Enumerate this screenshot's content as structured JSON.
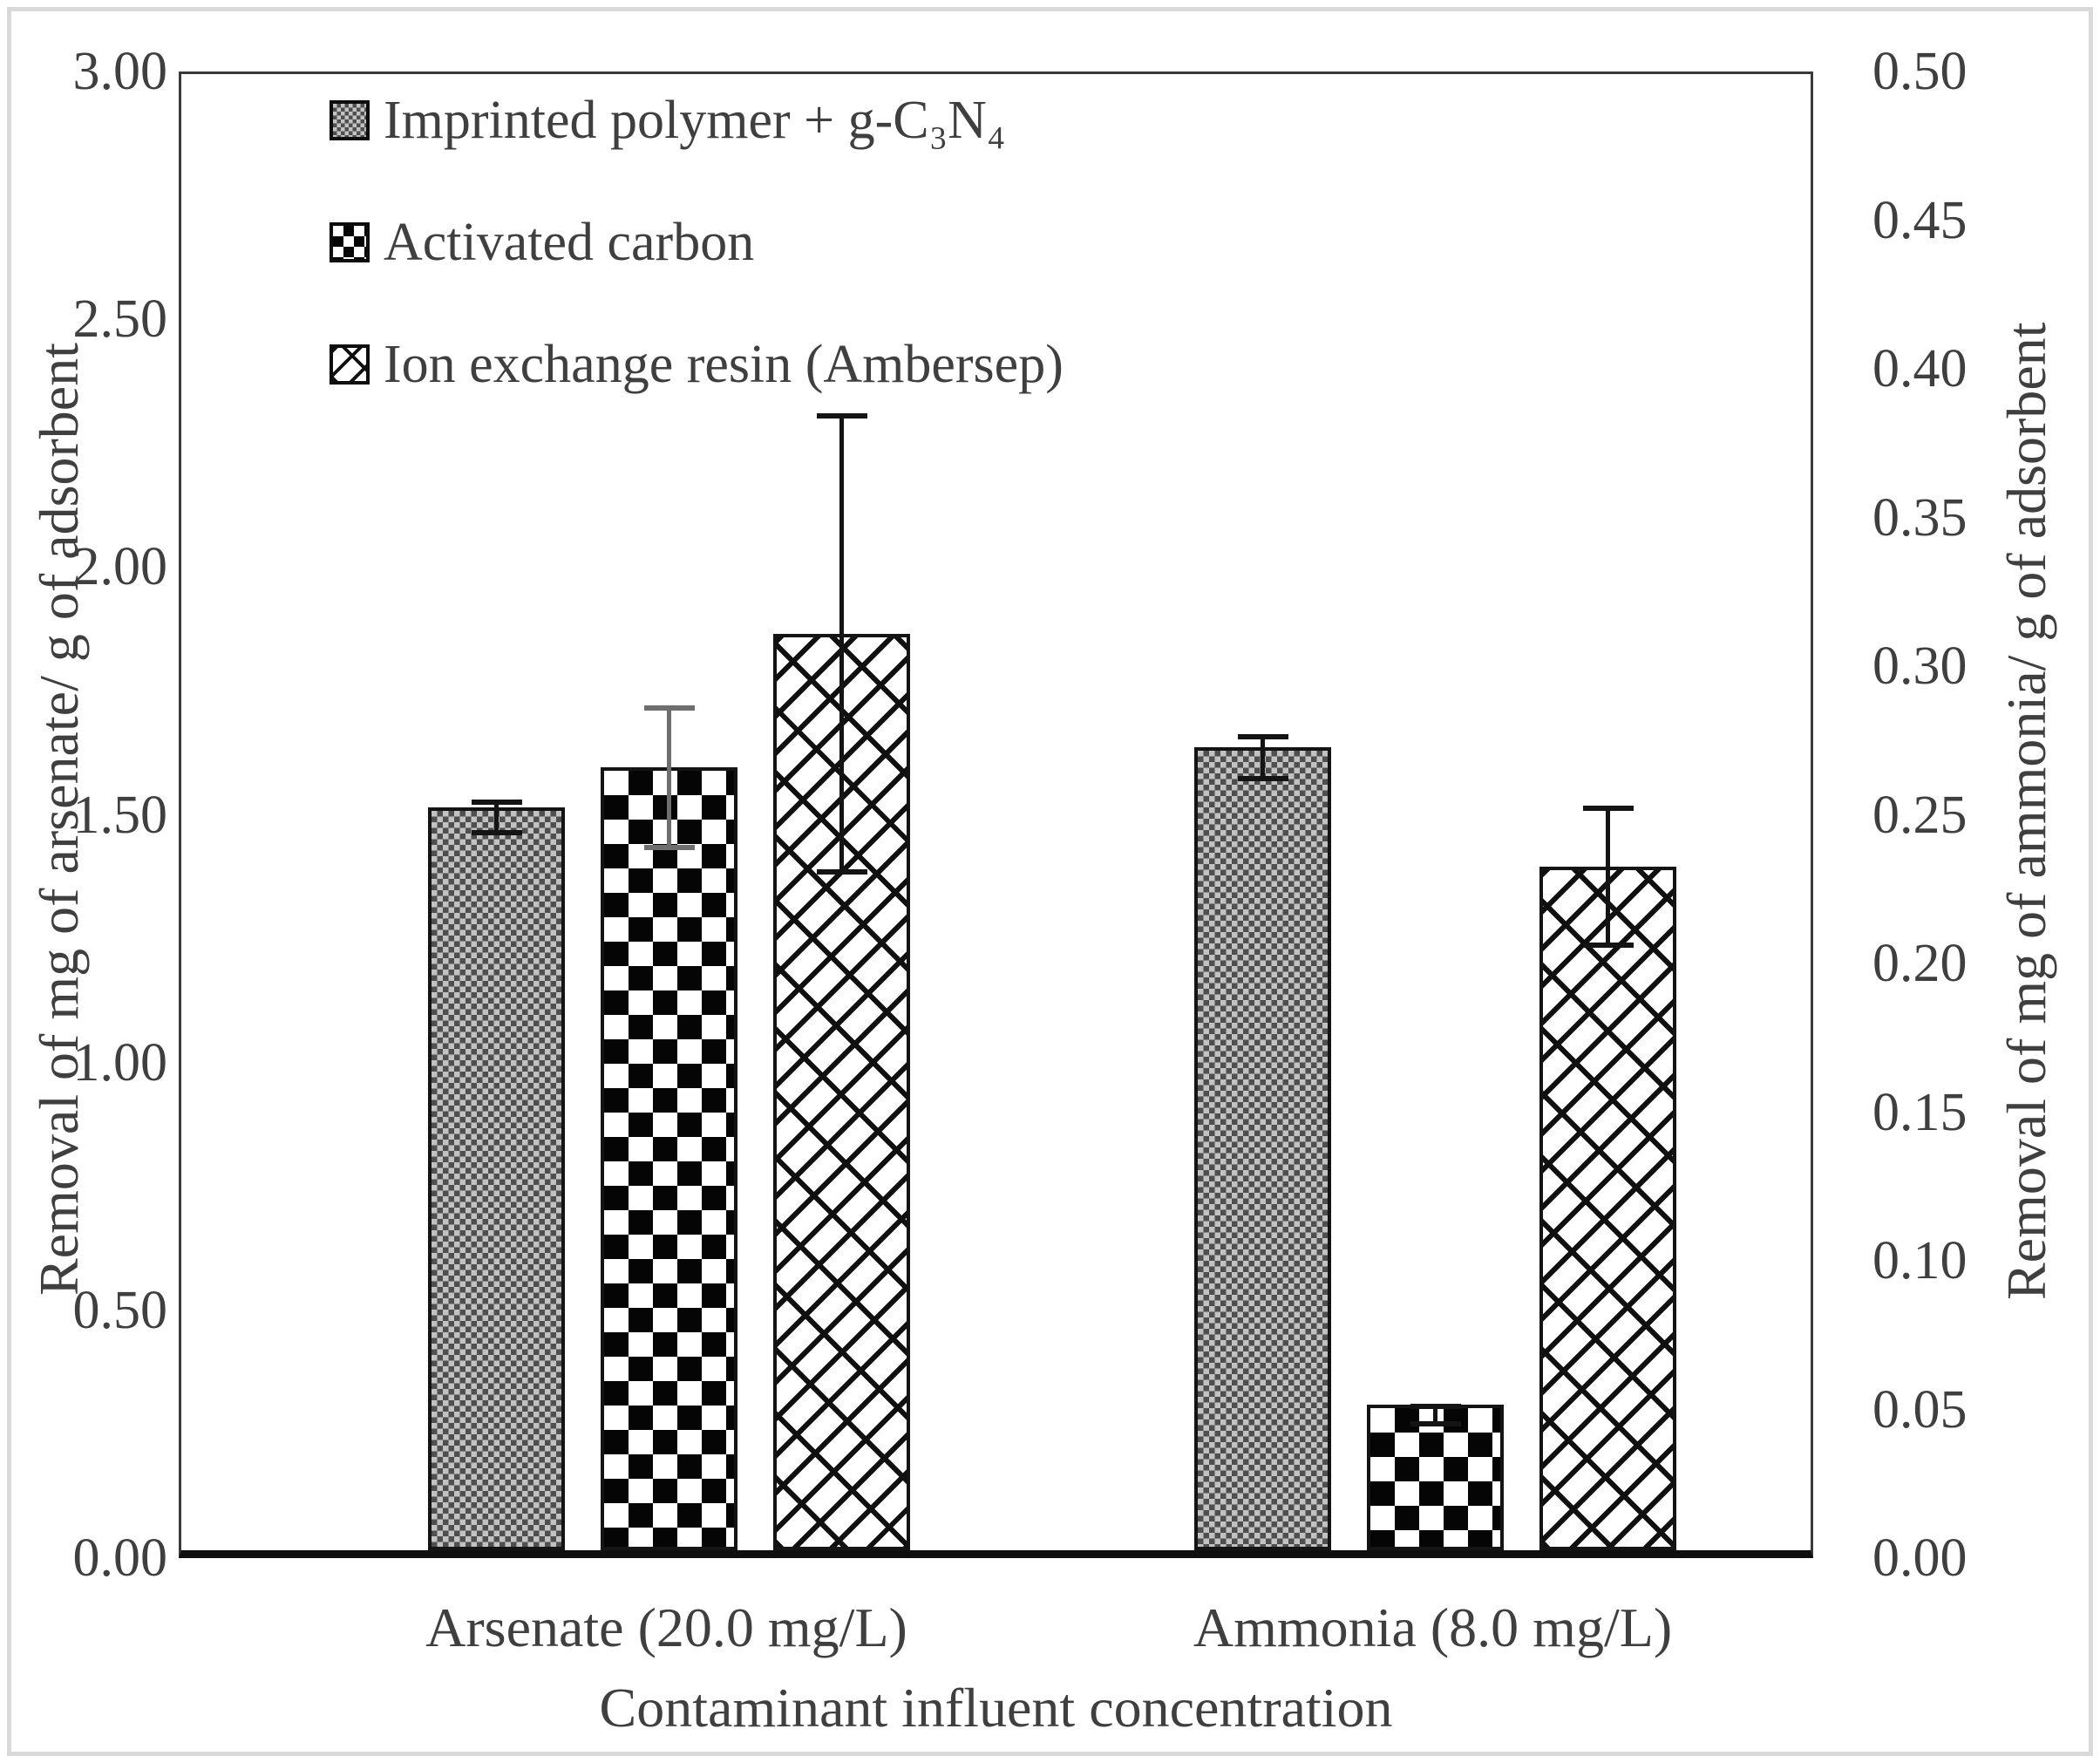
{
  "colors": {
    "text": "#3f3f3f",
    "axis_line": "#0f0f0f",
    "bar_outline": "#141414",
    "error_default": "#141414",
    "error_gray": "#6f6f6f",
    "figure_border": "#d9d9d9"
  },
  "chart_data": {
    "type": "bar",
    "x_title": "Contaminant influent concentration",
    "left_axis": {
      "title": "Removal of mg of arsenate/ g of adsorbent",
      "min": 0,
      "max": 3,
      "ticks": [
        "3.00",
        "2.50",
        "2.00",
        "1.50",
        "1.00",
        "0.50",
        "0.00"
      ]
    },
    "right_axis": {
      "title": "Removal of mg of ammonia/ g of adsorbent",
      "min": 0,
      "max": 0.5,
      "ticks": [
        "0.50",
        "0.45",
        "0.40",
        "0.35",
        "0.30",
        "0.25",
        "0.20",
        "0.15",
        "0.10",
        "0.05",
        "0.00"
      ]
    },
    "series": [
      {
        "name": "Imprinted polymer + g-C₃N₄",
        "pattern": "stipple"
      },
      {
        "name": "Activated carbon",
        "pattern": "checker"
      },
      {
        "name": "Ion exchange resin (Ambersep)",
        "pattern": "diagbrick"
      }
    ],
    "groups": [
      {
        "label": "Arsenate (20.0 mg/L)",
        "axis": "left",
        "values": [
          1.5,
          1.58,
          1.85
        ],
        "errors": [
          0.03,
          0.14,
          0.46
        ],
        "error_colors": [
          "#141414",
          "#6f6f6f",
          "#141414"
        ]
      },
      {
        "label": "Ammonia (8.0 mg/L)",
        "axis": "right",
        "values": [
          0.27,
          0.049,
          0.23
        ],
        "errors": [
          0.007,
          0.003,
          0.023
        ],
        "error_colors": [
          "#141414",
          "#141414",
          "#141414"
        ]
      }
    ],
    "legend_position": "top-left-inside",
    "grid": false
  }
}
